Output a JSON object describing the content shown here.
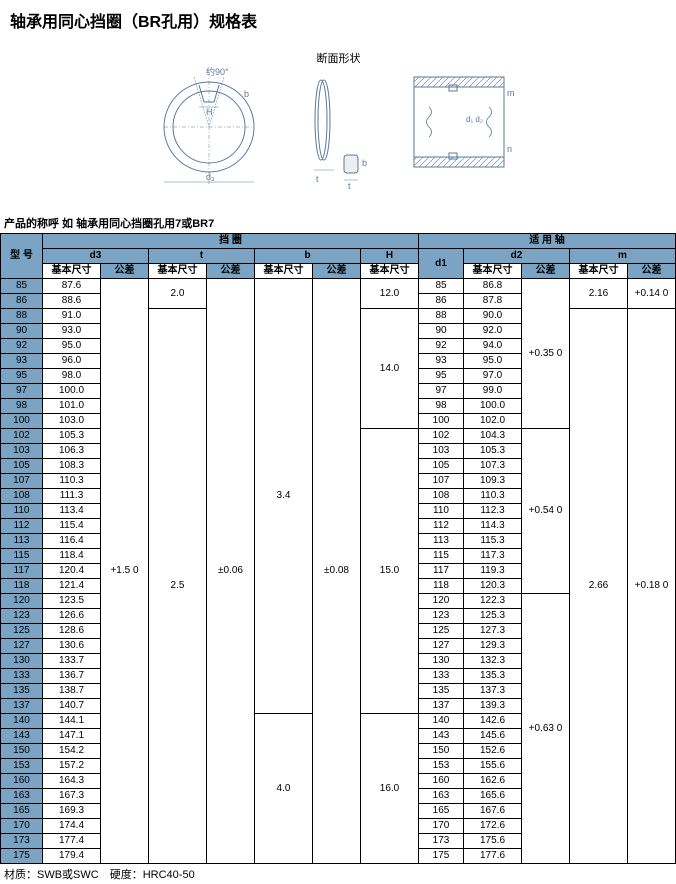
{
  "title": "轴承用同心挡圈（BR孔用）规格表",
  "section_label": "断面形状",
  "subtitle": "产品的称呼 如 轴承用同心挡圈孔用7或BR7",
  "footer": "材质：SWB或SWC　硬度：HRC40-50",
  "headers": {
    "model": "型 号",
    "ring": "挡 圈",
    "shaft": "适 用 轴",
    "d3": "d3",
    "t": "t",
    "b": "b",
    "H": "H",
    "d1": "d1",
    "d2": "d2",
    "m": "m",
    "base": "基本尺寸",
    "tol": "公差"
  },
  "rows": [
    {
      "m": "85",
      "d3": "87.6",
      "d1": "85",
      "d2": "86.8"
    },
    {
      "m": "86",
      "d3": "88.6",
      "d1": "86",
      "d2": "87.8"
    },
    {
      "m": "88",
      "d3": "91.0",
      "d1": "88",
      "d2": "90.0"
    },
    {
      "m": "90",
      "d3": "93.0",
      "d1": "90",
      "d2": "92.0"
    },
    {
      "m": "92",
      "d3": "95.0",
      "d1": "92",
      "d2": "94.0"
    },
    {
      "m": "93",
      "d3": "96.0",
      "d1": "93",
      "d2": "95.0"
    },
    {
      "m": "95",
      "d3": "98.0",
      "d1": "95",
      "d2": "97.0"
    },
    {
      "m": "97",
      "d3": "100.0",
      "d1": "97",
      "d2": "99.0"
    },
    {
      "m": "98",
      "d3": "101.0",
      "d1": "98",
      "d2": "100.0"
    },
    {
      "m": "100",
      "d3": "103.0",
      "d1": "100",
      "d2": "102.0"
    },
    {
      "m": "102",
      "d3": "105.3",
      "d1": "102",
      "d2": "104.3"
    },
    {
      "m": "103",
      "d3": "106.3",
      "d1": "103",
      "d2": "105.3"
    },
    {
      "m": "105",
      "d3": "108.3",
      "d1": "105",
      "d2": "107.3"
    },
    {
      "m": "107",
      "d3": "110.3",
      "d1": "107",
      "d2": "109.3"
    },
    {
      "m": "108",
      "d3": "111.3",
      "d1": "108",
      "d2": "110.3"
    },
    {
      "m": "110",
      "d3": "113.4",
      "d1": "110",
      "d2": "112.3"
    },
    {
      "m": "112",
      "d3": "115.4",
      "d1": "112",
      "d2": "114.3"
    },
    {
      "m": "113",
      "d3": "116.4",
      "d1": "113",
      "d2": "115.3"
    },
    {
      "m": "115",
      "d3": "118.4",
      "d1": "115",
      "d2": "117.3"
    },
    {
      "m": "117",
      "d3": "120.4",
      "d1": "117",
      "d2": "119.3"
    },
    {
      "m": "118",
      "d3": "121.4",
      "d1": "118",
      "d2": "120.3"
    },
    {
      "m": "120",
      "d3": "123.5",
      "d1": "120",
      "d2": "122.3"
    },
    {
      "m": "123",
      "d3": "126.6",
      "d1": "123",
      "d2": "125.3"
    },
    {
      "m": "125",
      "d3": "128.6",
      "d1": "125",
      "d2": "127.3"
    },
    {
      "m": "127",
      "d3": "130.6",
      "d1": "127",
      "d2": "129.3"
    },
    {
      "m": "130",
      "d3": "133.7",
      "d1": "130",
      "d2": "132.3"
    },
    {
      "m": "133",
      "d3": "136.7",
      "d1": "133",
      "d2": "135.3"
    },
    {
      "m": "135",
      "d3": "138.7",
      "d1": "135",
      "d2": "137.3"
    },
    {
      "m": "137",
      "d3": "140.7",
      "d1": "137",
      "d2": "139.3"
    },
    {
      "m": "140",
      "d3": "144.1",
      "d1": "140",
      "d2": "142.6"
    },
    {
      "m": "143",
      "d3": "147.1",
      "d1": "143",
      "d2": "145.6"
    },
    {
      "m": "150",
      "d3": "154.2",
      "d1": "150",
      "d2": "152.6"
    },
    {
      "m": "153",
      "d3": "157.2",
      "d1": "153",
      "d2": "155.6"
    },
    {
      "m": "160",
      "d3": "164.3",
      "d1": "160",
      "d2": "162.6"
    },
    {
      "m": "163",
      "d3": "167.3",
      "d1": "163",
      "d2": "165.6"
    },
    {
      "m": "165",
      "d3": "169.3",
      "d1": "165",
      "d2": "167.6"
    },
    {
      "m": "170",
      "d3": "174.4",
      "d1": "170",
      "d2": "172.6"
    },
    {
      "m": "173",
      "d3": "177.4",
      "d1": "173",
      "d2": "175.6"
    },
    {
      "m": "175",
      "d3": "179.4",
      "d1": "175",
      "d2": "177.6"
    }
  ],
  "spans": {
    "t_base": [
      {
        "start": 0,
        "span": 2,
        "val": "2.0"
      },
      {
        "start": 2,
        "span": 37,
        "val": "2.5"
      }
    ],
    "b_base": [
      {
        "start": 0,
        "span": 29,
        "val": "3.4"
      },
      {
        "start": 29,
        "span": 10,
        "val": "4.0"
      }
    ],
    "H": [
      {
        "start": 0,
        "span": 2,
        "val": "12.0"
      },
      {
        "start": 2,
        "span": 8,
        "val": "14.0"
      },
      {
        "start": 10,
        "span": 19,
        "val": "15.0"
      },
      {
        "start": 29,
        "span": 10,
        "val": "16.0"
      }
    ],
    "d2_tol": [
      {
        "start": 0,
        "span": 10,
        "val": "+0.35 0"
      },
      {
        "start": 10,
        "span": 11,
        "val": "+0.54 0"
      },
      {
        "start": 21,
        "span": 18,
        "val": "+0.63 0"
      }
    ],
    "m_base": [
      {
        "start": 0,
        "span": 2,
        "val": "2.16"
      },
      {
        "start": 2,
        "span": 37,
        "val": "2.66"
      }
    ],
    "m_tol": [
      {
        "start": 0,
        "span": 2,
        "val": "+0.14 0"
      },
      {
        "start": 2,
        "span": 37,
        "val": "+0.18 0"
      }
    ],
    "d3_tol": {
      "val": "+1.5 0"
    },
    "t_tol": {
      "val": "±0.06"
    },
    "b_tol": {
      "val": "±0.08"
    }
  }
}
